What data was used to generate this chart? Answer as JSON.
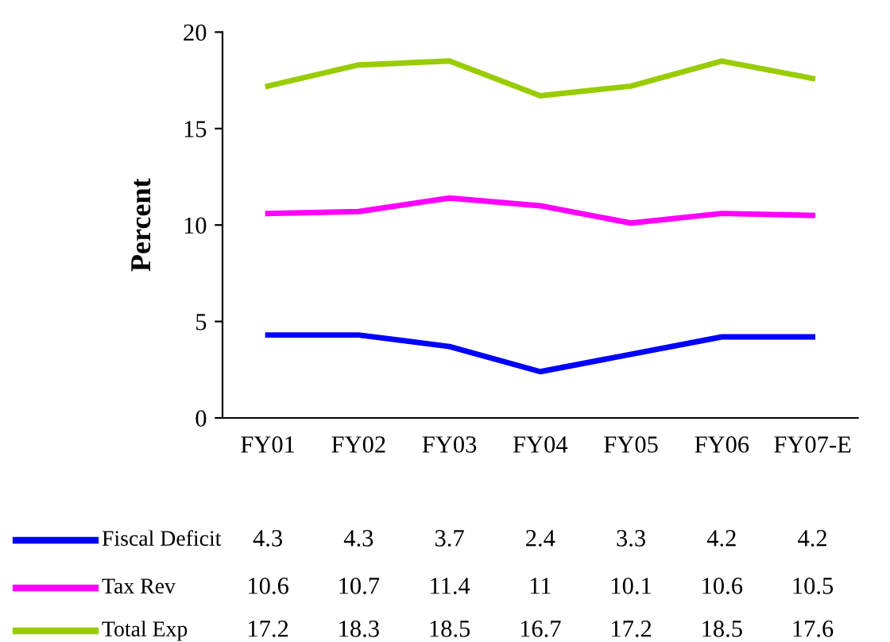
{
  "chart_data": {
    "type": "line",
    "ylabel": "Percent",
    "categories": [
      "FY01",
      "FY02",
      "FY03",
      "FY04",
      "FY05",
      "FY06",
      "FY07-E"
    ],
    "series": [
      {
        "name": "Fiscal Deficit",
        "color": "#0000ff",
        "values": [
          4.3,
          4.3,
          3.7,
          2.4,
          3.3,
          4.2,
          4.2
        ]
      },
      {
        "name": "Tax Rev",
        "color": "#ff00ff",
        "values": [
          10.6,
          10.7,
          11.4,
          11,
          10.1,
          10.6,
          10.5
        ]
      },
      {
        "name": "Total Exp",
        "color": "#99cc00",
        "values": [
          17.2,
          18.3,
          18.5,
          16.7,
          17.2,
          18.5,
          17.6
        ]
      }
    ],
    "ylim": [
      0,
      20
    ],
    "yticks": [
      0,
      5,
      10,
      15,
      20
    ],
    "grid": false,
    "legend": "bottom",
    "data_labels": true,
    "marker": "none",
    "line_style": "solid"
  }
}
